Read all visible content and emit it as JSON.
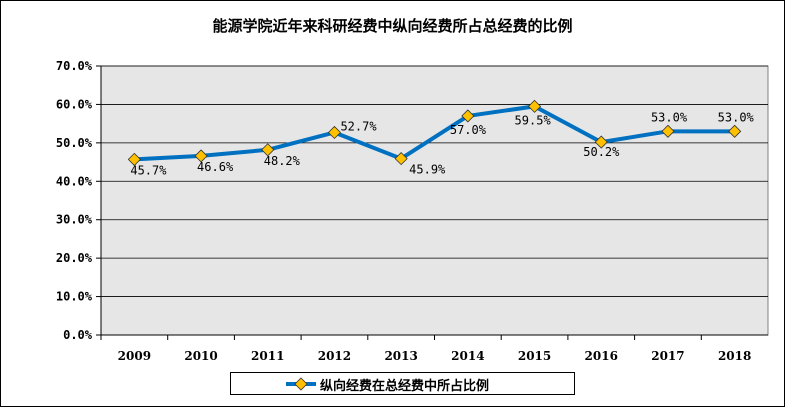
{
  "chart_data": {
    "type": "line",
    "title": "能源学院近年来科研经费中纵向经费所占总经费的比例",
    "categories": [
      "2009",
      "2010",
      "2011",
      "2012",
      "2013",
      "2014",
      "2015",
      "2016",
      "2017",
      "2018"
    ],
    "series": [
      {
        "name": "纵向经费在总经费中所占比例",
        "values": [
          45.7,
          46.6,
          48.2,
          52.7,
          45.9,
          57.0,
          59.5,
          50.2,
          53.0,
          53.0
        ],
        "labels": [
          "45.7%",
          "46.6%",
          "48.2%",
          "52.7%",
          "45.9%",
          "57.0%",
          "59.5%",
          "50.2%",
          "53.0%",
          "53.0%"
        ],
        "color": "#0070C0",
        "marker_color": "#FFC000"
      }
    ],
    "ylim": [
      0,
      70
    ],
    "yticks": [
      "0.0%",
      "10.0%",
      "20.0%",
      "30.0%",
      "40.0%",
      "50.0%",
      "60.0%",
      "70.0%"
    ],
    "xlabel": "",
    "ylabel": "",
    "grid": true,
    "plot_background": "#E6E6E6",
    "legend_position": "bottom"
  }
}
